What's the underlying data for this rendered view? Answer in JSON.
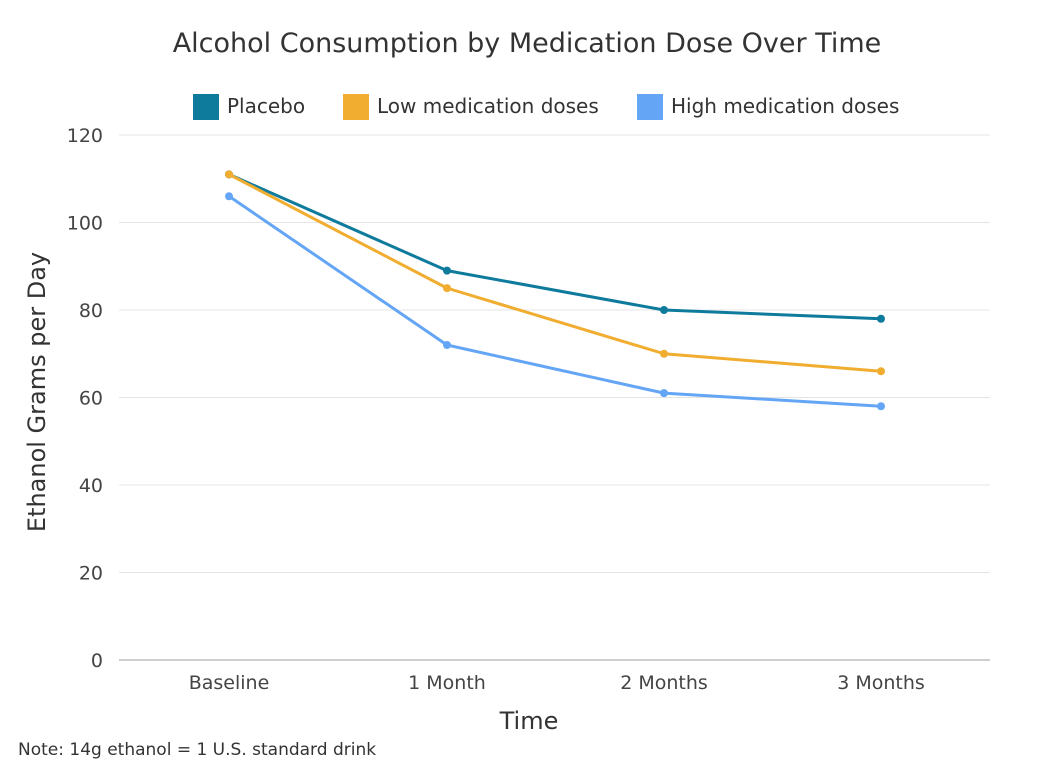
{
  "chart_data": {
    "type": "line",
    "title": "Alcohol Consumption by Medication Dose Over Time",
    "xlabel": "Time",
    "ylabel": "Ethanol Grams per Day",
    "categories": [
      "Baseline",
      "1 Month",
      "2 Months",
      "3 Months"
    ],
    "ylim": [
      0,
      120
    ],
    "yticks": [
      0,
      20,
      40,
      60,
      80,
      100,
      120
    ],
    "grid": true,
    "legend_position": "top",
    "series": [
      {
        "name": "Placebo",
        "color": "#0f7b9c",
        "values": [
          111,
          89,
          80,
          78
        ]
      },
      {
        "name": "Low medication doses",
        "color": "#f0ad30",
        "values": [
          111,
          85,
          70,
          66
        ]
      },
      {
        "name": "High medication doses",
        "color": "#64a6f5",
        "values": [
          106,
          72,
          61,
          58
        ]
      }
    ],
    "note": "Note: 14g ethanol = 1 U.S. standard drink"
  }
}
